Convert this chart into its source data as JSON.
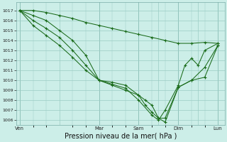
{
  "bg_color": "#cceee8",
  "grid_color": "#9bccc4",
  "line_color": "#1a6b1a",
  "marker_color": "#1a6b1a",
  "ylim": [
    1005.5,
    1017.8
  ],
  "yticks": [
    1006,
    1007,
    1008,
    1009,
    1010,
    1011,
    1012,
    1013,
    1014,
    1015,
    1016,
    1017
  ],
  "xlabel": "Pression niveau de la mer( hPa )",
  "xlabel_fontsize": 7.0,
  "day_labels": [
    "Ven",
    "",
    "Mar",
    "Sam",
    "",
    "Dim",
    "",
    "Lun"
  ],
  "day_positions": [
    0,
    6,
    12,
    18,
    21,
    24,
    27,
    30
  ],
  "vline_positions": [
    0,
    12,
    18,
    24,
    30
  ],
  "series": [
    {
      "x": [
        0,
        2,
        4,
        6,
        8,
        10,
        12,
        14,
        16,
        18,
        20,
        22,
        24,
        26,
        28,
        30
      ],
      "y": [
        1017,
        1017,
        1016.8,
        1016.5,
        1016.2,
        1015.8,
        1015.5,
        1015.2,
        1014.9,
        1014.6,
        1014.3,
        1014.0,
        1013.7,
        1013.7,
        1013.8,
        1013.7
      ]
    },
    {
      "x": [
        0,
        2,
        4,
        6,
        8,
        10,
        12,
        14,
        16,
        18,
        19,
        20,
        21,
        22,
        24,
        26,
        28,
        30
      ],
      "y": [
        1017,
        1015.5,
        1014.5,
        1013.5,
        1012.3,
        1011.0,
        1010.0,
        1009.8,
        1009.5,
        1008.5,
        1008.0,
        1007.5,
        1006.2,
        1006.2,
        1009.3,
        1010.0,
        1011.3,
        1013.5
      ]
    },
    {
      "x": [
        0,
        2,
        4,
        6,
        8,
        10,
        12,
        14,
        16,
        18,
        19,
        20,
        21,
        22,
        24,
        26,
        28,
        30
      ],
      "y": [
        1017,
        1016.0,
        1015.2,
        1014.3,
        1013.0,
        1011.5,
        1010.0,
        1009.5,
        1009.0,
        1008.5,
        1007.5,
        1006.8,
        1006.2,
        1005.8,
        1009.3,
        1010.0,
        1010.3,
        1013.5
      ]
    },
    {
      "x": [
        0,
        2,
        4,
        6,
        8,
        10,
        12,
        14,
        16,
        18,
        20,
        21,
        22,
        24,
        25,
        26,
        27,
        28,
        30
      ],
      "y": [
        1017,
        1016.5,
        1016.0,
        1015.0,
        1014.0,
        1012.5,
        1010.0,
        1009.6,
        1009.2,
        1008.0,
        1006.5,
        1006.0,
        1007.0,
        1009.5,
        1011.5,
        1012.2,
        1011.5,
        1013.0,
        1013.7
      ]
    }
  ]
}
